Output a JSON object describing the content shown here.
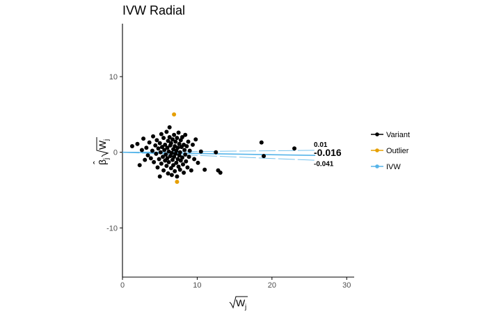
{
  "chart_data": {
    "type": "scatter",
    "title": "IVW Radial",
    "xlabel": "√Wj",
    "ylabel": "β̂j√Wj",
    "xlim": [
      0,
      31
    ],
    "ylim": [
      -16.5,
      17
    ],
    "x_ticks": [
      0,
      10,
      20,
      30
    ],
    "y_ticks": [
      -10,
      0,
      10
    ],
    "grid": false,
    "legend_position": "right",
    "legend": [
      {
        "label": "Variant",
        "color": "#000000"
      },
      {
        "label": "Outlier",
        "color": "#E69F00"
      },
      {
        "label": "IVW",
        "color": "#56B4E9"
      }
    ],
    "ivw_line": {
      "slope": -0.016,
      "x_range": [
        0,
        25.8
      ]
    },
    "ivw_ci_lines": [
      {
        "slope": 0.01,
        "x_range": [
          0,
          25.8
        ]
      },
      {
        "slope": -0.041,
        "x_range": [
          0,
          25.8
        ]
      }
    ],
    "annotations": [
      {
        "text": "0.01",
        "x": 25.6,
        "y": 0.7,
        "size": "small"
      },
      {
        "text": "-0.016",
        "x": 25.6,
        "y": -0.5,
        "size": "big"
      },
      {
        "text": "-0.041",
        "x": 25.6,
        "y": -1.8,
        "size": "small"
      }
    ],
    "series": [
      {
        "name": "Variant",
        "color": "#000000",
        "points": [
          [
            1.3,
            0.8
          ],
          [
            2.0,
            1.1
          ],
          [
            2.3,
            -1.7
          ],
          [
            2.6,
            0.3
          ],
          [
            2.8,
            1.8
          ],
          [
            3.0,
            -1.0
          ],
          [
            3.2,
            0.6
          ],
          [
            3.4,
            -0.4
          ],
          [
            3.6,
            1.3
          ],
          [
            3.8,
            -0.8
          ],
          [
            4.0,
            0.2
          ],
          [
            4.1,
            2.1
          ],
          [
            4.2,
            -1.3
          ],
          [
            4.4,
            0.9
          ],
          [
            4.5,
            -0.2
          ],
          [
            4.6,
            1.6
          ],
          [
            4.7,
            -2.0
          ],
          [
            4.8,
            0.5
          ],
          [
            4.9,
            -0.9
          ],
          [
            5.0,
            1.2
          ],
          [
            5.0,
            -3.2
          ],
          [
            5.1,
            0.0
          ],
          [
            5.2,
            2.4
          ],
          [
            5.2,
            -1.5
          ],
          [
            5.3,
            0.7
          ],
          [
            5.4,
            -0.6
          ],
          [
            5.5,
            1.9
          ],
          [
            5.5,
            -2.4
          ],
          [
            5.6,
            0.3
          ],
          [
            5.7,
            -1.1
          ],
          [
            5.7,
            1.0
          ],
          [
            5.8,
            -0.3
          ],
          [
            5.9,
            2.7
          ],
          [
            5.9,
            -1.8
          ],
          [
            6.0,
            0.6
          ],
          [
            6.0,
            -0.8
          ],
          [
            6.1,
            1.5
          ],
          [
            6.1,
            -2.8
          ],
          [
            6.2,
            0.1
          ],
          [
            6.2,
            -1.3
          ],
          [
            6.3,
            2.0
          ],
          [
            6.3,
            3.3
          ],
          [
            6.4,
            -0.5
          ],
          [
            6.4,
            0.9
          ],
          [
            6.5,
            -2.1
          ],
          [
            6.5,
            1.2
          ],
          [
            6.6,
            -0.1
          ],
          [
            6.6,
            -3.0
          ],
          [
            6.7,
            1.7
          ],
          [
            6.7,
            -1.0
          ],
          [
            6.8,
            0.4
          ],
          [
            6.8,
            -1.7
          ],
          [
            6.9,
            2.3
          ],
          [
            6.9,
            -0.6
          ],
          [
            7.0,
            0.8
          ],
          [
            7.0,
            -2.5
          ],
          [
            7.1,
            1.4
          ],
          [
            7.1,
            -0.2
          ],
          [
            7.2,
            -1.4
          ],
          [
            7.2,
            0.2
          ],
          [
            7.3,
            1.9
          ],
          [
            7.3,
            -3.2
          ],
          [
            7.4,
            -0.9
          ],
          [
            7.4,
            0.6
          ],
          [
            7.5,
            2.6
          ],
          [
            7.5,
            -1.9
          ],
          [
            7.6,
            1.1
          ],
          [
            7.6,
            -0.4
          ],
          [
            7.7,
            -2.3
          ],
          [
            7.7,
            0.0
          ],
          [
            7.8,
            1.6
          ],
          [
            7.8,
            -1.1
          ],
          [
            7.9,
            0.7
          ],
          [
            8.0,
            -0.7
          ],
          [
            8.0,
            2.0
          ],
          [
            8.1,
            -1.6
          ],
          [
            8.2,
            1.0
          ],
          [
            8.2,
            -2.7
          ],
          [
            8.3,
            0.3
          ],
          [
            8.4,
            -0.3
          ],
          [
            8.4,
            2.3
          ],
          [
            8.5,
            -1.2
          ],
          [
            8.6,
            0.8
          ],
          [
            8.7,
            -2.0
          ],
          [
            8.8,
            1.4
          ],
          [
            8.9,
            -0.6
          ],
          [
            9.0,
            0.2
          ],
          [
            9.2,
            -2.4
          ],
          [
            9.4,
            1.0
          ],
          [
            9.6,
            -0.9
          ],
          [
            9.8,
            1.7
          ],
          [
            10.1,
            -1.4
          ],
          [
            10.5,
            0.1
          ],
          [
            11.0,
            -2.3
          ],
          [
            12.5,
            0.0
          ],
          [
            12.8,
            -2.4
          ],
          [
            13.1,
            -2.7
          ],
          [
            18.6,
            1.3
          ],
          [
            18.9,
            -0.5
          ],
          [
            23.0,
            0.5
          ]
        ]
      },
      {
        "name": "Outlier",
        "color": "#E69F00",
        "points": [
          [
            6.9,
            5.0
          ],
          [
            7.3,
            -3.9
          ]
        ]
      }
    ]
  }
}
